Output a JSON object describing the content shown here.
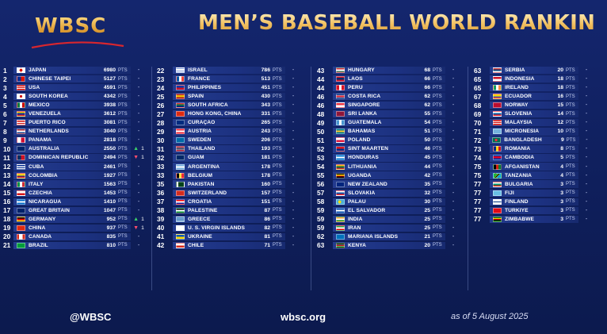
{
  "header": {
    "logo_text": "WBSC",
    "title": "MEN’S BASEBALL WORLD RANKING"
  },
  "pts_unit": "PTS",
  "columns": [
    [
      {
        "rank": "1",
        "country": "JAPAN",
        "points": "6980",
        "change": "-",
        "flag": "jp"
      },
      {
        "rank": "2",
        "country": "CHINESE TAIPEI",
        "points": "5127",
        "change": "-",
        "flag": "tpe"
      },
      {
        "rank": "3",
        "country": "USA",
        "points": "4591",
        "change": "-",
        "flag": "us"
      },
      {
        "rank": "4",
        "country": "SOUTH KOREA",
        "points": "4342",
        "change": "-",
        "flag": "kr"
      },
      {
        "rank": "5",
        "country": "MEXICO",
        "points": "3938",
        "change": "-",
        "flag": "mx"
      },
      {
        "rank": "6",
        "country": "VENEZUELA",
        "points": "3612",
        "change": "-",
        "flag": "ve"
      },
      {
        "rank": "7",
        "country": "PUERTO RICO",
        "points": "3081",
        "change": "-",
        "flag": "pr"
      },
      {
        "rank": "8",
        "country": "NETHERLANDS",
        "points": "3040",
        "change": "-",
        "flag": "nl"
      },
      {
        "rank": "9",
        "country": "PANAMA",
        "points": "2818",
        "change": "-",
        "flag": "pa"
      },
      {
        "rank": "10",
        "country": "AUSTRALIA",
        "points": "2550",
        "change": "up",
        "change_value": "1",
        "flag": "au"
      },
      {
        "rank": "11",
        "country": "DOMINICAN REPUBLIC",
        "points": "2494",
        "change": "down",
        "change_value": "1",
        "flag": "do"
      },
      {
        "rank": "12",
        "country": "CUBA",
        "points": "2461",
        "change": "-",
        "flag": "cu"
      },
      {
        "rank": "13",
        "country": "COLOMBIA",
        "points": "1927",
        "change": "-",
        "flag": "co"
      },
      {
        "rank": "14",
        "country": "ITALY",
        "points": "1563",
        "change": "-",
        "flag": "it"
      },
      {
        "rank": "15",
        "country": "CZECHIA",
        "points": "1453",
        "change": "-",
        "flag": "cz"
      },
      {
        "rank": "16",
        "country": "NICARAGUA",
        "points": "1410",
        "change": "-",
        "flag": "ni"
      },
      {
        "rank": "17",
        "country": "GREAT BRITAIN",
        "points": "1047",
        "change": "-",
        "flag": "gb"
      },
      {
        "rank": "18",
        "country": "GERMANY",
        "points": "952",
        "change": "up",
        "change_value": "1",
        "flag": "de"
      },
      {
        "rank": "19",
        "country": "CHINA",
        "points": "937",
        "change": "down",
        "change_value": "1",
        "flag": "cn"
      },
      {
        "rank": "20",
        "country": "CANADA",
        "points": "835",
        "change": "-",
        "flag": "ca"
      },
      {
        "rank": "21",
        "country": "BRAZIL",
        "points": "810",
        "change": "-",
        "flag": "br"
      }
    ],
    [
      {
        "rank": "22",
        "country": "ISRAEL",
        "points": "786",
        "change": "-",
        "flag": "il"
      },
      {
        "rank": "23",
        "country": "FRANCE",
        "points": "513",
        "change": "-",
        "flag": "fr"
      },
      {
        "rank": "24",
        "country": "PHILIPPINES",
        "points": "451",
        "change": "-",
        "flag": "ph"
      },
      {
        "rank": "25",
        "country": "SPAIN",
        "points": "430",
        "change": "-",
        "flag": "es"
      },
      {
        "rank": "26",
        "country": "SOUTH AFRICA",
        "points": "343",
        "change": "-",
        "flag": "za"
      },
      {
        "rank": "27",
        "country": "HONG KONG, CHINA",
        "points": "331",
        "change": "-",
        "flag": "hk"
      },
      {
        "rank": "28",
        "country": "CURAÇAO",
        "points": "265",
        "change": "-",
        "flag": "cw"
      },
      {
        "rank": "29",
        "country": "AUSTRIA",
        "points": "243",
        "change": "-",
        "flag": "at"
      },
      {
        "rank": "30",
        "country": "SWEDEN",
        "points": "206",
        "change": "-",
        "flag": "se"
      },
      {
        "rank": "31",
        "country": "THAILAND",
        "points": "193",
        "change": "-",
        "flag": "th"
      },
      {
        "rank": "32",
        "country": "GUAM",
        "points": "181",
        "change": "-",
        "flag": "gu"
      },
      {
        "rank": "33",
        "country": "ARGENTINA",
        "points": "178",
        "change": "-",
        "flag": "ar"
      },
      {
        "rank": "33",
        "country": "BELGIUM",
        "points": "178",
        "change": "-",
        "flag": "be"
      },
      {
        "rank": "35",
        "country": "PAKISTAN",
        "points": "160",
        "change": "-",
        "flag": "pk"
      },
      {
        "rank": "36",
        "country": "SWITZERLAND",
        "points": "157",
        "change": "-",
        "flag": "ch"
      },
      {
        "rank": "37",
        "country": "CROATIA",
        "points": "151",
        "change": "-",
        "flag": "hr"
      },
      {
        "rank": "38",
        "country": "PALESTINE",
        "points": "87",
        "change": "-",
        "flag": "ps"
      },
      {
        "rank": "39",
        "country": "GREECE",
        "points": "86",
        "change": "-",
        "flag": "gr"
      },
      {
        "rank": "40",
        "country": "U. S. VIRGIN ISLANDS",
        "points": "82",
        "change": "-",
        "flag": "vi"
      },
      {
        "rank": "41",
        "country": "UKRAINE",
        "points": "81",
        "change": "-",
        "flag": "ua"
      },
      {
        "rank": "42",
        "country": "CHILE",
        "points": "71",
        "change": "-",
        "flag": "cl"
      }
    ],
    [
      {
        "rank": "43",
        "country": "HUNGARY",
        "points": "68",
        "change": "-",
        "flag": "hu"
      },
      {
        "rank": "44",
        "country": "LAOS",
        "points": "66",
        "change": "-",
        "flag": "la"
      },
      {
        "rank": "44",
        "country": "PERU",
        "points": "66",
        "change": "-",
        "flag": "pe"
      },
      {
        "rank": "46",
        "country": "COSTA RICA",
        "points": "62",
        "change": "-",
        "flag": "cr"
      },
      {
        "rank": "46",
        "country": "SINGAPORE",
        "points": "62",
        "change": "-",
        "flag": "sg"
      },
      {
        "rank": "48",
        "country": "SRI LANKA",
        "points": "55",
        "change": "-",
        "flag": "lk"
      },
      {
        "rank": "49",
        "country": "GUATEMALA",
        "points": "54",
        "change": "-",
        "flag": "gt"
      },
      {
        "rank": "50",
        "country": "BAHAMAS",
        "points": "51",
        "change": "-",
        "flag": "bs"
      },
      {
        "rank": "51",
        "country": "POLAND",
        "points": "50",
        "change": "-",
        "flag": "pl"
      },
      {
        "rank": "52",
        "country": "SINT MAARTEN",
        "points": "46",
        "change": "-",
        "flag": "sx"
      },
      {
        "rank": "53",
        "country": "HONDURAS",
        "points": "45",
        "change": "-",
        "flag": "hn"
      },
      {
        "rank": "54",
        "country": "LITHUANIA",
        "points": "44",
        "change": "-",
        "flag": "lt"
      },
      {
        "rank": "55",
        "country": "UGANDA",
        "points": "42",
        "change": "-",
        "flag": "ug"
      },
      {
        "rank": "56",
        "country": "NEW ZEALAND",
        "points": "35",
        "change": "-",
        "flag": "nz"
      },
      {
        "rank": "57",
        "country": "SLOVAKIA",
        "points": "32",
        "change": "-",
        "flag": "sk"
      },
      {
        "rank": "58",
        "country": "PALAU",
        "points": "30",
        "change": "-",
        "flag": "pw"
      },
      {
        "rank": "59",
        "country": "EL SALVADOR",
        "points": "25",
        "change": "-",
        "flag": "sv"
      },
      {
        "rank": "59",
        "country": "INDIA",
        "points": "25",
        "change": "-",
        "flag": "in"
      },
      {
        "rank": "59",
        "country": "IRAN",
        "points": "25",
        "change": "-",
        "flag": "ir"
      },
      {
        "rank": "62",
        "country": "MARIANA ISLANDS",
        "points": "21",
        "change": "-",
        "flag": "mp"
      },
      {
        "rank": "63",
        "country": "KENYA",
        "points": "20",
        "change": "-",
        "flag": "ke"
      }
    ],
    [
      {
        "rank": "63",
        "country": "SERBIA",
        "points": "20",
        "change": "-",
        "flag": "rs"
      },
      {
        "rank": "65",
        "country": "INDONESIA",
        "points": "18",
        "change": "-",
        "flag": "id"
      },
      {
        "rank": "65",
        "country": "IRELAND",
        "points": "18",
        "change": "-",
        "flag": "ie"
      },
      {
        "rank": "67",
        "country": "ECUADOR",
        "points": "16",
        "change": "-",
        "flag": "ec"
      },
      {
        "rank": "68",
        "country": "NORWAY",
        "points": "15",
        "change": "-",
        "flag": "no"
      },
      {
        "rank": "69",
        "country": "SLOVENIA",
        "points": "14",
        "change": "-",
        "flag": "si"
      },
      {
        "rank": "70",
        "country": "MALAYSIA",
        "points": "12",
        "change": "-",
        "flag": "my"
      },
      {
        "rank": "71",
        "country": "MICRONESIA",
        "points": "10",
        "change": "-",
        "flag": "fm"
      },
      {
        "rank": "72",
        "country": "BANGLADESH",
        "points": "9",
        "change": "-",
        "flag": "bd"
      },
      {
        "rank": "73",
        "country": "ROMANIA",
        "points": "8",
        "change": "-",
        "flag": "ro"
      },
      {
        "rank": "74",
        "country": "CAMBODIA",
        "points": "5",
        "change": "-",
        "flag": "kh"
      },
      {
        "rank": "75",
        "country": "AFGANISTAN",
        "points": "4",
        "change": "-",
        "flag": "af"
      },
      {
        "rank": "75",
        "country": "TANZANIA",
        "points": "4",
        "change": "-",
        "flag": "tz"
      },
      {
        "rank": "77",
        "country": "BULGARIA",
        "points": "3",
        "change": "-",
        "flag": "bg"
      },
      {
        "rank": "77",
        "country": "FIJI",
        "points": "3",
        "change": "-",
        "flag": "fj"
      },
      {
        "rank": "77",
        "country": "FINLAND",
        "points": "3",
        "change": "-",
        "flag": "fi"
      },
      {
        "rank": "77",
        "country": "TÜRKIYE",
        "points": "3",
        "change": "-",
        "flag": "tr"
      },
      {
        "rank": "77",
        "country": "ZIMBABWE",
        "points": "3",
        "change": "-",
        "flag": "zw"
      }
    ]
  ],
  "footer": {
    "handle": "@WBSC",
    "site": "wbsc.org",
    "date": "as of 5 August 2025"
  }
}
